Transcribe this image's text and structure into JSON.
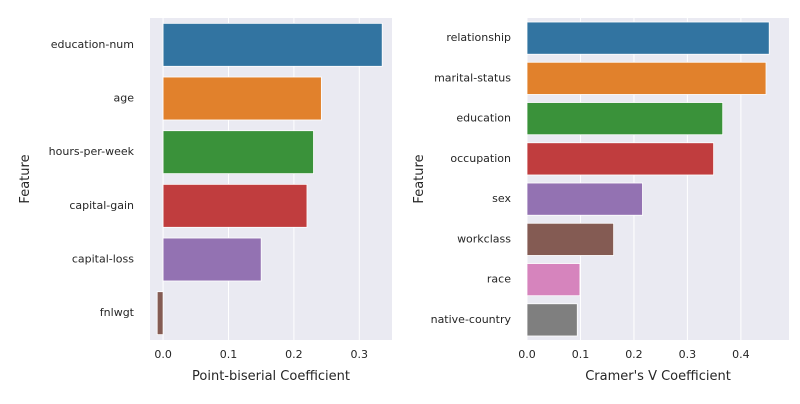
{
  "chart_data": [
    {
      "type": "bar",
      "orientation": "horizontal",
      "categories": [
        "education-num",
        "age",
        "hours-per-week",
        "capital-gain",
        "capital-loss",
        "fnlwgt"
      ],
      "values": [
        0.335,
        0.242,
        0.23,
        0.22,
        0.15,
        -0.009
      ],
      "colors": [
        "#3274a1",
        "#e1812c",
        "#3a923a",
        "#c03d3e",
        "#9372b2",
        "#845b53"
      ],
      "xlabel": "Point-biserial Coefficient",
      "ylabel": "Feature",
      "xlim": [
        -0.02,
        0.35
      ],
      "xticks": [
        0.0,
        0.1,
        0.2,
        0.3
      ],
      "xtick_labels": [
        "0.0",
        "0.1",
        "0.2",
        "0.3"
      ],
      "grid": true
    },
    {
      "type": "bar",
      "orientation": "horizontal",
      "categories": [
        "relationship",
        "marital-status",
        "education",
        "occupation",
        "sex",
        "workclass",
        "race",
        "native-country"
      ],
      "values": [
        0.453,
        0.447,
        0.366,
        0.349,
        0.216,
        0.162,
        0.099,
        0.094
      ],
      "colors": [
        "#3274a1",
        "#e1812c",
        "#3a923a",
        "#c03d3e",
        "#9372b2",
        "#845b53",
        "#d684bd",
        "#7f7f7f"
      ],
      "xlabel": "Cramer's V Coefficient",
      "ylabel": "Feature",
      "xlim": [
        0.0,
        0.49
      ],
      "xticks": [
        0.0,
        0.1,
        0.2,
        0.3,
        0.4
      ],
      "xtick_labels": [
        "0.0",
        "0.1",
        "0.2",
        "0.3",
        "0.4"
      ],
      "grid": true
    }
  ],
  "style": {
    "axes_bg": "#eaeaf2",
    "grid_color": "#ffffff",
    "text_color": "#262626"
  }
}
